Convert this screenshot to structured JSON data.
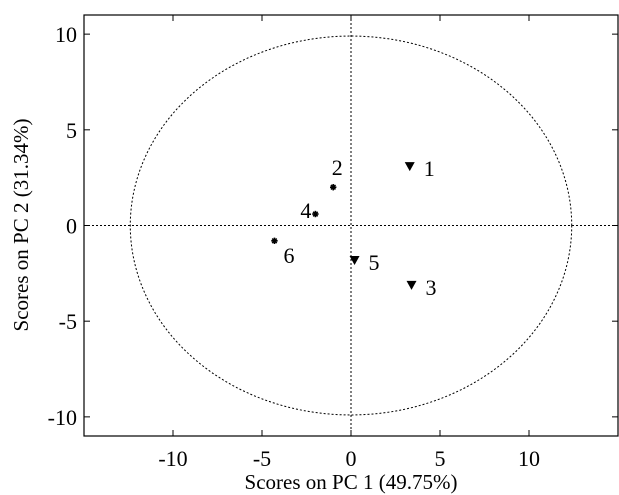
{
  "chart_data": {
    "type": "scatter",
    "xlabel": "Scores on PC 1 (49.75%)",
    "ylabel": "Scores on PC 2 (31.34%)",
    "xlim": [
      -15,
      15
    ],
    "ylim": [
      -11,
      11
    ],
    "xticks": [
      -10,
      -5,
      0,
      5,
      10
    ],
    "yticks": [
      -10,
      -5,
      0,
      5,
      10
    ],
    "xtick_labels": [
      "-10",
      "-5",
      "0",
      "5",
      "10"
    ],
    "ytick_labels": [
      "-10",
      "-5",
      "0",
      "5",
      "10"
    ],
    "grid": false,
    "reference_lines": {
      "x": 0,
      "y": 0,
      "style": "dashed"
    },
    "confidence_ellipse": {
      "center": [
        0,
        0
      ],
      "x_radius": 12.4,
      "y_radius": 9.9,
      "style": "dashed"
    },
    "points": [
      {
        "label": "1",
        "x": 3.3,
        "y": 3.1,
        "marker": "triangle-down"
      },
      {
        "label": "2",
        "x": -1.0,
        "y": 2.0,
        "marker": "star"
      },
      {
        "label": "3",
        "x": 3.4,
        "y": -3.1,
        "marker": "triangle-down"
      },
      {
        "label": "4",
        "x": -2.0,
        "y": 0.6,
        "marker": "star"
      },
      {
        "label": "5",
        "x": 0.2,
        "y": -1.8,
        "marker": "triangle-down"
      },
      {
        "label": "6",
        "x": -4.3,
        "y": -0.8,
        "marker": "star"
      }
    ]
  }
}
